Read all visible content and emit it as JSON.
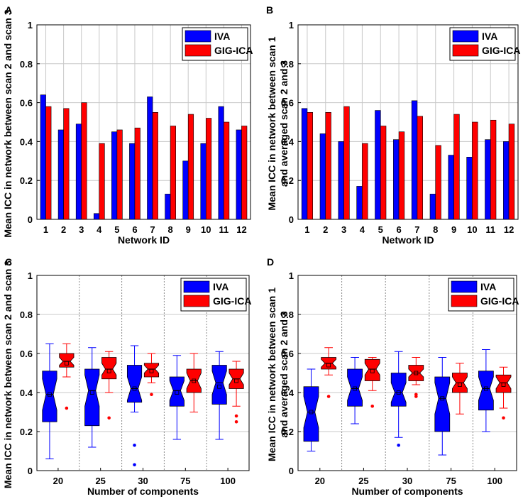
{
  "colors": {
    "iva": "#0000ff",
    "gig": "#ff0000",
    "grid": "#c8c8c8",
    "box_edge": "#000000"
  },
  "chart_data": [
    {
      "panel": "A",
      "type": "bar",
      "xlabel": "Network ID",
      "ylabel": "Mean ICC in network between scan 2 and scan 3",
      "ylim": [
        0,
        1
      ],
      "yticks": [
        "0",
        "0.2",
        "0.4",
        "0.6",
        "0.8",
        "1"
      ],
      "categories": [
        "1",
        "2",
        "3",
        "4",
        "5",
        "6",
        "7",
        "8",
        "9",
        "10",
        "11",
        "12"
      ],
      "series": [
        {
          "name": "IVA",
          "values": [
            0.64,
            0.46,
            0.49,
            0.03,
            0.45,
            0.39,
            0.63,
            0.13,
            0.3,
            0.39,
            0.58,
            0.46
          ]
        },
        {
          "name": "GIG-ICA",
          "values": [
            0.58,
            0.57,
            0.6,
            0.39,
            0.46,
            0.47,
            0.55,
            0.48,
            0.54,
            0.52,
            0.5,
            0.48
          ]
        }
      ],
      "legend": [
        "IVA",
        "GIG-ICA"
      ],
      "legend_position": "top-right",
      "grid": true
    },
    {
      "panel": "B",
      "type": "bar",
      "xlabel": "Network ID",
      "ylabel_line1": "Mean ICC in network between scan 1",
      "ylabel_line2": "and averaged scan 2 and 3",
      "ylim": [
        0,
        1
      ],
      "yticks": [
        "0",
        "0.2",
        "0.4",
        "0.6",
        "0.8",
        "1"
      ],
      "categories": [
        "1",
        "2",
        "3",
        "4",
        "5",
        "6",
        "7",
        "8",
        "9",
        "10",
        "11",
        "12"
      ],
      "series": [
        {
          "name": "IVA",
          "values": [
            0.57,
            0.44,
            0.4,
            0.17,
            0.56,
            0.41,
            0.61,
            0.13,
            0.33,
            0.32,
            0.41,
            0.4
          ]
        },
        {
          "name": "GIG-ICA",
          "values": [
            0.55,
            0.55,
            0.58,
            0.39,
            0.48,
            0.45,
            0.53,
            0.38,
            0.54,
            0.5,
            0.51,
            0.49
          ]
        }
      ],
      "legend": [
        "IVA",
        "GIG-ICA"
      ],
      "legend_position": "top-right",
      "grid": true
    },
    {
      "panel": "C",
      "type": "box",
      "xlabel": "Number of components",
      "ylabel": "Mean ICC in network between scan 2 and scan 3",
      "ylim": [
        0,
        1
      ],
      "yticks": [
        "0",
        "0.2",
        "0.4",
        "0.6",
        "0.8",
        "1"
      ],
      "categories": [
        "20",
        "25",
        "30",
        "75",
        "100"
      ],
      "series": [
        {
          "name": "IVA",
          "boxes": [
            {
              "min": 0.06,
              "q1": 0.25,
              "median": 0.39,
              "q3": 0.51,
              "max": 0.65,
              "mean": 0.39,
              "notch": [
                0.31,
                0.47
              ],
              "outliers": []
            },
            {
              "min": 0.12,
              "q1": 0.23,
              "median": 0.41,
              "q3": 0.52,
              "max": 0.63,
              "mean": 0.4,
              "notch": [
                0.33,
                0.49
              ],
              "outliers": []
            },
            {
              "min": 0.3,
              "q1": 0.35,
              "median": 0.42,
              "q3": 0.54,
              "max": 0.64,
              "mean": 0.42,
              "notch": [
                0.36,
                0.48
              ],
              "outliers": [
                0.13,
                0.03
              ]
            },
            {
              "min": 0.16,
              "q1": 0.33,
              "median": 0.41,
              "q3": 0.48,
              "max": 0.59,
              "mean": 0.4,
              "notch": [
                0.36,
                0.46
              ],
              "outliers": []
            },
            {
              "min": 0.16,
              "q1": 0.34,
              "median": 0.45,
              "q3": 0.54,
              "max": 0.61,
              "mean": 0.43,
              "notch": [
                0.39,
                0.51
              ],
              "outliers": []
            }
          ]
        },
        {
          "name": "GIG-ICA",
          "boxes": [
            {
              "min": 0.48,
              "q1": 0.53,
              "median": 0.56,
              "q3": 0.6,
              "max": 0.65,
              "mean": 0.55,
              "notch": [
                0.54,
                0.58
              ],
              "outliers": [
                0.32
              ]
            },
            {
              "min": 0.4,
              "q1": 0.47,
              "median": 0.52,
              "q3": 0.58,
              "max": 0.61,
              "mean": 0.51,
              "notch": [
                0.49,
                0.55
              ],
              "outliers": [
                0.27
              ]
            },
            {
              "min": 0.45,
              "q1": 0.48,
              "median": 0.52,
              "q3": 0.55,
              "max": 0.6,
              "mean": 0.51,
              "notch": [
                0.5,
                0.54
              ],
              "outliers": [
                0.39
              ]
            },
            {
              "min": 0.3,
              "q1": 0.4,
              "median": 0.46,
              "q3": 0.52,
              "max": 0.6,
              "mean": 0.46,
              "notch": [
                0.42,
                0.5
              ],
              "outliers": []
            },
            {
              "min": 0.33,
              "q1": 0.42,
              "median": 0.47,
              "q3": 0.52,
              "max": 0.56,
              "mean": 0.46,
              "notch": [
                0.44,
                0.5
              ],
              "outliers": [
                0.28,
                0.25
              ]
            }
          ]
        }
      ],
      "legend": [
        "IVA",
        "GIG-ICA"
      ],
      "legend_position": "top-right",
      "grid": true
    },
    {
      "panel": "D",
      "type": "box",
      "xlabel": "Number of components",
      "ylabel_line1": "Mean ICC in network between scan 1",
      "ylabel_line2": "and averaged scan 2 and 3",
      "ylim": [
        0,
        1
      ],
      "yticks": [
        "0",
        "0.2",
        "0.4",
        "0.6",
        "0.8",
        "1"
      ],
      "categories": [
        "20",
        "25",
        "30",
        "75",
        "100"
      ],
      "series": [
        {
          "name": "IVA",
          "boxes": [
            {
              "min": 0.1,
              "q1": 0.15,
              "median": 0.3,
              "q3": 0.43,
              "max": 0.52,
              "mean": 0.3,
              "notch": [
                0.22,
                0.38
              ],
              "outliers": []
            },
            {
              "min": 0.24,
              "q1": 0.33,
              "median": 0.42,
              "q3": 0.52,
              "max": 0.58,
              "mean": 0.42,
              "notch": [
                0.36,
                0.48
              ],
              "outliers": []
            },
            {
              "min": 0.17,
              "q1": 0.33,
              "median": 0.4,
              "q3": 0.5,
              "max": 0.61,
              "mean": 0.4,
              "notch": [
                0.35,
                0.45
              ],
              "outliers": [
                0.13
              ]
            },
            {
              "min": 0.08,
              "q1": 0.2,
              "median": 0.37,
              "q3": 0.48,
              "max": 0.58,
              "mean": 0.37,
              "notch": [
                0.29,
                0.45
              ],
              "outliers": []
            },
            {
              "min": 0.2,
              "q1": 0.31,
              "median": 0.42,
              "q3": 0.51,
              "max": 0.62,
              "mean": 0.42,
              "notch": [
                0.36,
                0.48
              ],
              "outliers": []
            }
          ]
        },
        {
          "name": "GIG-ICA",
          "boxes": [
            {
              "min": 0.49,
              "q1": 0.52,
              "median": 0.55,
              "q3": 0.58,
              "max": 0.63,
              "mean": 0.54,
              "notch": [
                0.53,
                0.57
              ],
              "outliers": [
                0.38
              ]
            },
            {
              "min": 0.41,
              "q1": 0.46,
              "median": 0.52,
              "q3": 0.57,
              "max": 0.58,
              "mean": 0.51,
              "notch": [
                0.49,
                0.55
              ],
              "outliers": [
                0.33
              ]
            },
            {
              "min": 0.44,
              "q1": 0.46,
              "median": 0.5,
              "q3": 0.54,
              "max": 0.58,
              "mean": 0.5,
              "notch": [
                0.48,
                0.52
              ],
              "outliers": [
                0.39,
                0.38
              ]
            },
            {
              "min": 0.29,
              "q1": 0.4,
              "median": 0.45,
              "q3": 0.5,
              "max": 0.55,
              "mean": 0.44,
              "notch": [
                0.42,
                0.48
              ],
              "outliers": []
            },
            {
              "min": 0.32,
              "q1": 0.4,
              "median": 0.45,
              "q3": 0.49,
              "max": 0.53,
              "mean": 0.44,
              "notch": [
                0.42,
                0.48
              ],
              "outliers": [
                0.27
              ]
            }
          ]
        }
      ],
      "legend": [
        "IVA",
        "GIG-ICA"
      ],
      "legend_position": "top-right",
      "grid": true
    }
  ]
}
